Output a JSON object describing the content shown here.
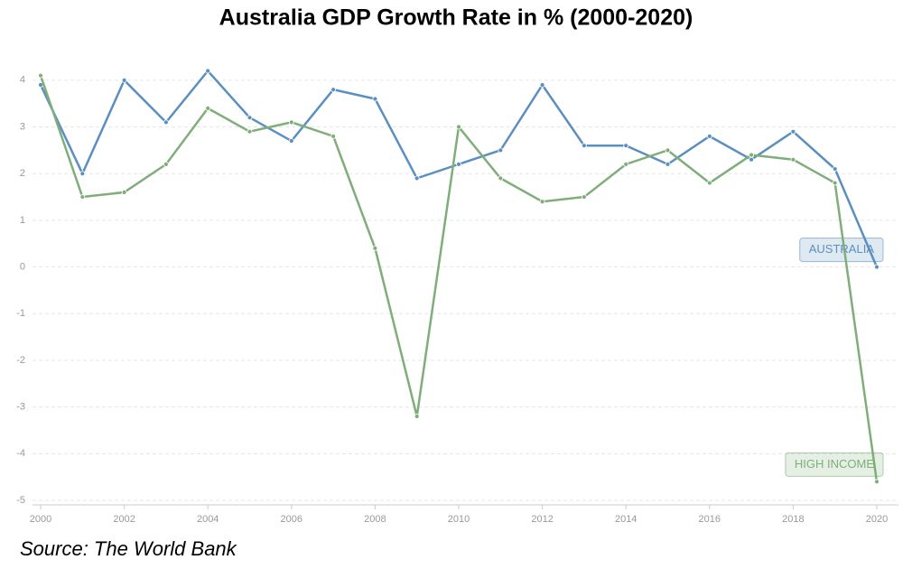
{
  "chart_data": {
    "type": "line",
    "title": "Australia GDP Growth Rate in % (2000-2020)",
    "source": "Source: The World Bank",
    "x": [
      2000,
      2001,
      2002,
      2003,
      2004,
      2005,
      2006,
      2007,
      2008,
      2009,
      2010,
      2011,
      2012,
      2013,
      2014,
      2015,
      2016,
      2017,
      2018,
      2019,
      2020
    ],
    "series": [
      {
        "name": "AUSTRALIA",
        "color": "#5b8fc0",
        "values": [
          3.9,
          2.0,
          4.0,
          3.1,
          4.2,
          3.2,
          2.7,
          3.8,
          3.6,
          1.9,
          2.2,
          2.5,
          3.9,
          2.6,
          2.6,
          2.2,
          2.8,
          2.3,
          2.9,
          2.1,
          0
        ]
      },
      {
        "name": "HIGH INCOME",
        "color": "#7fae7a",
        "values": [
          4.1,
          1.5,
          1.6,
          2.2,
          3.4,
          2.9,
          3.1,
          2.8,
          0.4,
          -3.2,
          3.0,
          1.9,
          1.4,
          1.5,
          2.2,
          2.5,
          1.8,
          2.4,
          2.3,
          1.8,
          -4.6
        ]
      }
    ],
    "xlim": [
      2000,
      2020
    ],
    "xticks": [
      2000,
      2002,
      2004,
      2006,
      2008,
      2010,
      2012,
      2014,
      2016,
      2018,
      2020
    ],
    "ylim": [
      -5,
      4.5
    ],
    "yticks": [
      -5,
      -4,
      -3,
      -2,
      -1,
      0,
      1,
      2,
      3,
      4
    ],
    "grid": true
  }
}
